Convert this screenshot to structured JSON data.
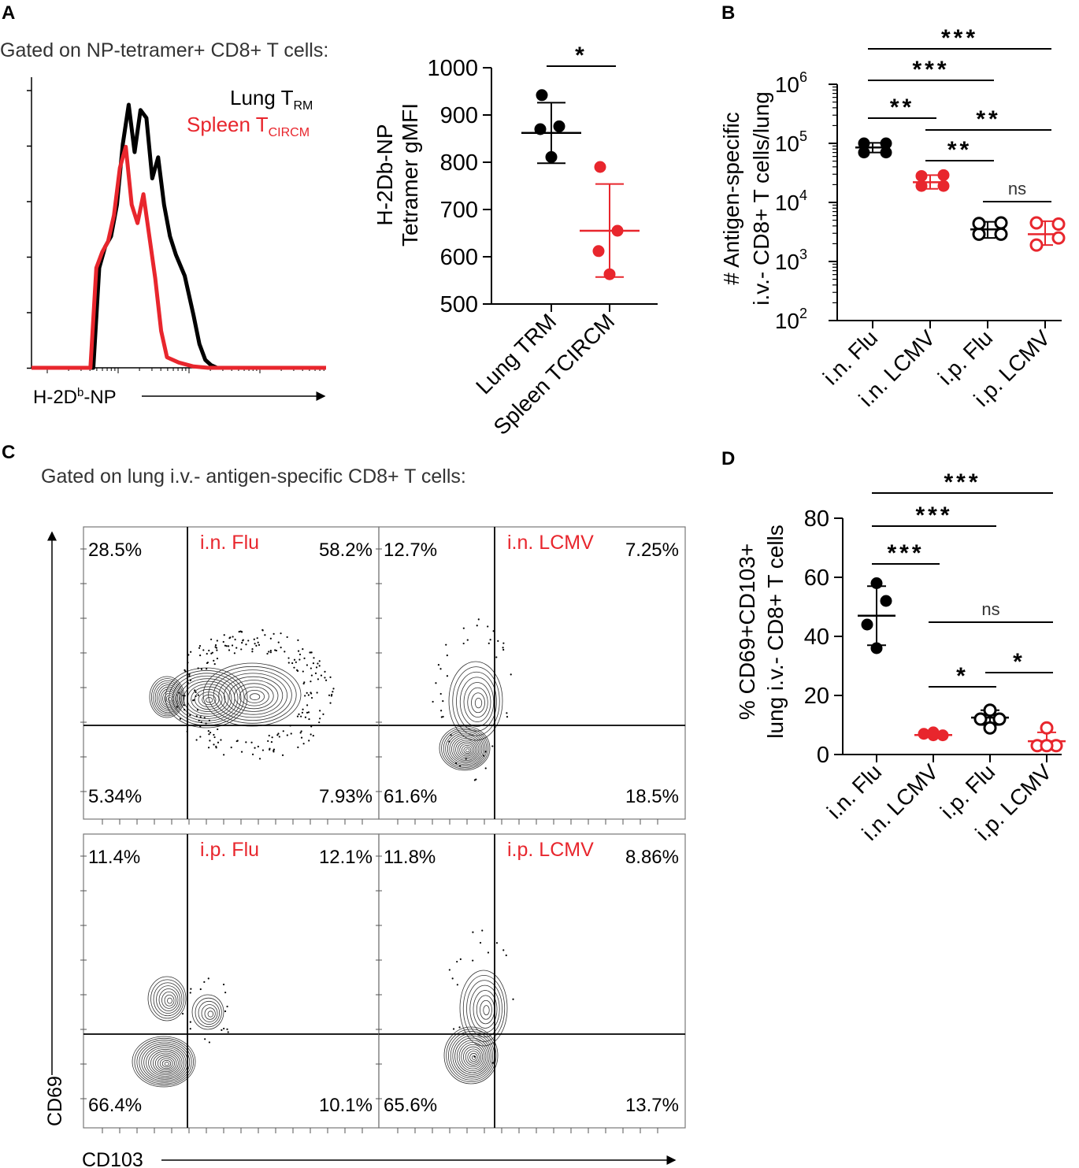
{
  "colors": {
    "black": "#000000",
    "red": "#e8262d",
    "grey": "#555555"
  },
  "panels": {
    "A": {
      "letter": "A",
      "gate": "Gated on NP-tetramer+ CD8+ T cells:",
      "legend": [
        {
          "base": "Lung T",
          "sub": "RM",
          "color": "#000000"
        },
        {
          "base": "Spleen T",
          "sub": "CIRCM",
          "color": "#e8262d"
        }
      ],
      "xaxis_label": {
        "base": "H-2D",
        "sup": "b",
        "rest": "-NP"
      }
    },
    "B": {
      "letter": "B"
    },
    "C": {
      "letter": "C",
      "gate": "Gated on lung i.v.- antigen-specific CD8+ T cells:",
      "xlabel": "CD103",
      "ylabel": "CD69",
      "plots": [
        {
          "name": "i.n. Flu",
          "q": [
            "28.5%",
            "58.2%",
            "5.34%",
            "7.93%"
          ]
        },
        {
          "name": "i.n. LCMV",
          "q": [
            "12.7%",
            "7.25%",
            "61.6%",
            "18.5%"
          ]
        },
        {
          "name": "i.p. Flu",
          "q": [
            "11.4%",
            "12.1%",
            "66.4%",
            "10.1%"
          ]
        },
        {
          "name": "i.p. LCMV",
          "q": [
            "11.8%",
            "8.86%",
            "65.6%",
            "13.7%"
          ]
        }
      ]
    },
    "D": {
      "letter": "D"
    }
  },
  "chart_data": [
    {
      "id": "A-histogram",
      "type": "histogram",
      "title": "Gated on NP-tetramer+ CD8+ T cells:",
      "xlabel": "H-2Db-NP",
      "series": [
        {
          "name": "Lung TRM",
          "color": "#000000",
          "x": [
            0,
            0.21,
            0.23,
            0.25,
            0.27,
            0.29,
            0.31,
            0.33,
            0.35,
            0.37,
            0.39,
            0.41,
            0.43,
            0.45,
            0.47,
            0.49,
            0.52,
            0.55,
            0.57,
            0.59,
            0.61,
            0.63,
            1.0
          ],
          "y": [
            0,
            0,
            0.38,
            0.46,
            0.5,
            0.62,
            0.85,
            1.0,
            0.82,
            0.98,
            0.95,
            0.72,
            0.8,
            0.62,
            0.5,
            0.43,
            0.35,
            0.2,
            0.09,
            0.03,
            0.01,
            0,
            0
          ]
        },
        {
          "name": "Spleen TCIRCM",
          "color": "#e8262d",
          "x": [
            0,
            0.2,
            0.22,
            0.24,
            0.26,
            0.28,
            0.3,
            0.32,
            0.34,
            0.36,
            0.38,
            0.4,
            0.42,
            0.44,
            0.46,
            0.5,
            0.55,
            0.6,
            1.0
          ],
          "y": [
            0,
            0,
            0.38,
            0.44,
            0.48,
            0.58,
            0.76,
            0.84,
            0.62,
            0.55,
            0.66,
            0.5,
            0.34,
            0.14,
            0.04,
            0.02,
            0.005,
            0,
            0
          ]
        }
      ]
    },
    {
      "id": "A-scatter",
      "type": "scatter",
      "ylabel_lines": [
        "H-2Db-NP",
        "Tetramer gMFI"
      ],
      "categories": [
        "Lung TRM",
        "Spleen TCIRCM"
      ],
      "ylim": [
        500,
        1000
      ],
      "yticks": [
        500,
        600,
        700,
        800,
        900,
        1000
      ],
      "series": [
        {
          "name": "Lung TRM",
          "color": "#000000",
          "filled": true,
          "points": [
            942,
            876,
            870,
            811
          ],
          "mean": 862,
          "sd_low": 798,
          "sd_high": 926
        },
        {
          "name": "Spleen TCIRCM",
          "color": "#e8262d",
          "filled": true,
          "points": [
            790,
            655,
            612,
            563
          ],
          "mean": 655,
          "sd_low": 557,
          "sd_high": 754
        }
      ],
      "significance": [
        {
          "from": 0,
          "to": 1,
          "label": "*"
        }
      ]
    },
    {
      "id": "B",
      "type": "scatter",
      "yscale": "log",
      "ylabel_lines": [
        "# Antigen-specific",
        "i.v.- CD8+ T cells/lung"
      ],
      "ylim": [
        100,
        1000000
      ],
      "yticks": [
        {
          "base": "10",
          "exp": "2"
        },
        {
          "base": "10",
          "exp": "3"
        },
        {
          "base": "10",
          "exp": "4"
        },
        {
          "base": "10",
          "exp": "5"
        },
        {
          "base": "10",
          "exp": "6"
        }
      ],
      "categories": [
        "i.n. Flu",
        "i.n. LCMV",
        "i.p. Flu",
        "i.p. LCMV"
      ],
      "series": [
        {
          "name": "i.n. Flu",
          "color": "#000000",
          "filled": true,
          "points": [
            70000,
            70000,
            100000,
            100000
          ],
          "mean": 85000,
          "sd_low": 70000,
          "sd_high": 102000
        },
        {
          "name": "i.n. LCMV",
          "color": "#e8262d",
          "filled": true,
          "points": [
            19000,
            19000,
            28000,
            29000
          ],
          "mean": 22000,
          "sd_low": 17000,
          "sd_high": 29000
        },
        {
          "name": "i.p. Flu",
          "color": "#000000",
          "filled": false,
          "points": [
            2900,
            2900,
            4400,
            4500
          ],
          "mean": 3500,
          "sd_low": 2500,
          "sd_high": 4700
        },
        {
          "name": "i.p. LCMV",
          "color": "#e8262d",
          "filled": false,
          "points": [
            1900,
            4300,
            4500,
            2500
          ],
          "mean": 2900,
          "sd_low": 1900,
          "sd_high": 4800
        }
      ],
      "significance": [
        {
          "from": 0,
          "to": 3,
          "label": "***"
        },
        {
          "from": 0,
          "to": 2,
          "label": "***"
        },
        {
          "from": 0,
          "to": 1,
          "label": "**"
        },
        {
          "from": 1,
          "to": 3,
          "label": "**"
        },
        {
          "from": 1,
          "to": 2,
          "label": "**"
        },
        {
          "from": 2,
          "to": 3,
          "label": "ns"
        }
      ]
    },
    {
      "id": "D",
      "type": "scatter",
      "ylabel_lines": [
        "% CD69+CD103+",
        "lung i.v.- CD8+ T cells"
      ],
      "ylim": [
        0,
        80
      ],
      "yticks": [
        0,
        20,
        40,
        60,
        80
      ],
      "categories": [
        "i.n. Flu",
        "i.n. LCMV",
        "i.p. Flu",
        "i.p. LCMV"
      ],
      "series": [
        {
          "name": "i.n. Flu",
          "color": "#000000",
          "filled": true,
          "points": [
            58,
            52,
            44,
            36
          ],
          "mean": 47,
          "sd_low": 37,
          "sd_high": 57
        },
        {
          "name": "i.n. LCMV",
          "color": "#e8262d",
          "filled": true,
          "points": [
            6.5,
            6.5,
            7,
            7.5
          ],
          "mean": 6.6,
          "sd_low": 6.3,
          "sd_high": 7
        },
        {
          "name": "i.p. Flu",
          "color": "#000000",
          "filled": false,
          "points": [
            15,
            12,
            12,
            9
          ],
          "mean": 12.5,
          "sd_low": 10,
          "sd_high": 15
        },
        {
          "name": "i.p. LCMV",
          "color": "#e8262d",
          "filled": false,
          "points": [
            9,
            3,
            3,
            3
          ],
          "mean": 4.5,
          "sd_low": 2,
          "sd_high": 7.5
        }
      ],
      "significance": [
        {
          "from": 0,
          "to": 3,
          "label": "***"
        },
        {
          "from": 0,
          "to": 2,
          "label": "***"
        },
        {
          "from": 0,
          "to": 1,
          "label": "***"
        },
        {
          "from": 1,
          "to": 3,
          "label": "ns"
        },
        {
          "from": 1,
          "to": 2,
          "label": "*"
        },
        {
          "from": 2,
          "to": 3,
          "label": "*"
        }
      ]
    }
  ]
}
